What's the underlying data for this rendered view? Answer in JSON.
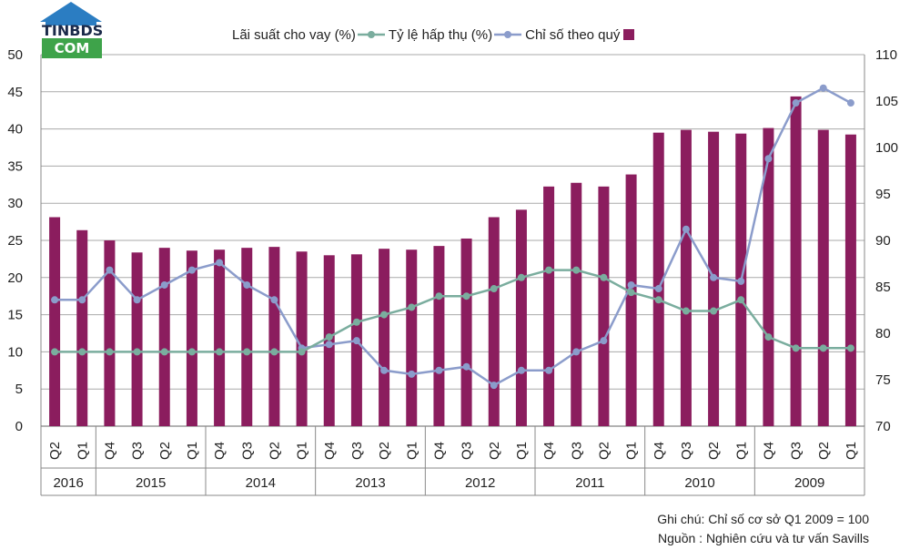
{
  "logo": {
    "line1": "TINBDS",
    "line2": "COM"
  },
  "legend": {
    "items": [
      {
        "label": "Lãi suất cho vay (%)",
        "kind": "line",
        "color": "#7aad9e"
      },
      {
        "label": "Tỷ lệ hấp thụ (%)",
        "kind": "line",
        "color": "#8b9ccb"
      },
      {
        "label": "Chỉ số theo quý",
        "kind": "bar",
        "color": "#8b1d5e"
      }
    ]
  },
  "notes": {
    "line1": "Ghi chú: Chỉ số cơ sở Q1 2009 = 100",
    "line2": "Nguồn : Nghiên cứu và tư vấn Savills"
  },
  "chart_data": {
    "type": "bar",
    "orientation_note": "mirrored horizontally",
    "categories": [
      "Q2",
      "Q1",
      "Q4",
      "Q3",
      "Q2",
      "Q1",
      "Q4",
      "Q3",
      "Q2",
      "Q1",
      "Q4",
      "Q3",
      "Q2",
      "Q1",
      "Q4",
      "Q3",
      "Q2",
      "Q1",
      "Q4",
      "Q3",
      "Q2",
      "Q1",
      "Q4",
      "Q3",
      "Q2",
      "Q1",
      "Q4",
      "Q3",
      "Q2",
      "Q1"
    ],
    "category_labels": [
      "Q2",
      "Q1",
      "Q4",
      "Q3",
      "Q2",
      "Q1",
      "Q4",
      "Q3",
      "Q2",
      "Q1",
      "Q4",
      "Q3",
      "Q2",
      "Q1",
      "Q4",
      "Q3",
      "Q2",
      "Q1",
      "Q4",
      "Q3",
      "Q2",
      "Q1",
      "Q4",
      "Q3",
      "Q2",
      "Q1",
      "Q4",
      "Q3",
      "Q2",
      "Q1"
    ],
    "years": [
      {
        "label": "2016",
        "span": 2
      },
      {
        "label": "2015",
        "span": 4
      },
      {
        "label": "2014",
        "span": 4
      },
      {
        "label": "2013",
        "span": 4
      },
      {
        "label": "2012",
        "span": 4
      },
      {
        "label": "2011",
        "span": 4
      },
      {
        "label": "2010",
        "span": 4
      },
      {
        "label": "2009",
        "span": 4
      }
    ],
    "left_axis": {
      "ylim": [
        0,
        50
      ],
      "ticks": [
        "0",
        "5",
        "10",
        "15",
        "20",
        "25",
        "30",
        "35",
        "40",
        "45",
        "50"
      ]
    },
    "right_axis": {
      "ylim": [
        70,
        110
      ],
      "ticks": [
        "70",
        "75",
        "80",
        "85",
        "90",
        "95",
        "100",
        "105",
        "110"
      ]
    },
    "series": [
      {
        "name": "Chỉ số theo quý",
        "type": "bar",
        "axis": "right",
        "color": "#8b1d5e",
        "values": [
          92.5,
          91.1,
          90.0,
          88.7,
          89.2,
          88.9,
          89.0,
          89.2,
          89.3,
          88.8,
          88.4,
          88.5,
          89.1,
          89.0,
          89.4,
          90.2,
          92.5,
          93.3,
          95.8,
          96.2,
          95.8,
          97.1,
          101.6,
          101.9,
          101.7,
          101.5,
          102.1,
          105.5,
          101.9,
          101.4
        ]
      },
      {
        "name": "Tỷ lệ hấp thụ (%)",
        "type": "line",
        "axis": "left",
        "color": "#8b9ccb",
        "values": [
          17,
          17,
          21,
          17,
          19,
          21,
          22,
          19,
          17,
          10.5,
          11,
          11.5,
          7.5,
          7,
          7.5,
          8,
          5.5,
          7.5,
          7.5,
          10,
          11.5,
          19,
          18.5,
          26.5,
          20,
          19.5,
          36,
          43.5,
          45.5,
          43.5
        ]
      },
      {
        "name": "Lãi suất cho vay (%)",
        "type": "line",
        "axis": "left",
        "color": "#7aad9e",
        "values": [
          10,
          10,
          10,
          10,
          10,
          10,
          10,
          10,
          10,
          10,
          12,
          14,
          15,
          16,
          17.5,
          17.5,
          18.5,
          20,
          21,
          21,
          20,
          18,
          17,
          15.5,
          15.5,
          17,
          12,
          10.5,
          10.5,
          10.5
        ]
      }
    ]
  }
}
